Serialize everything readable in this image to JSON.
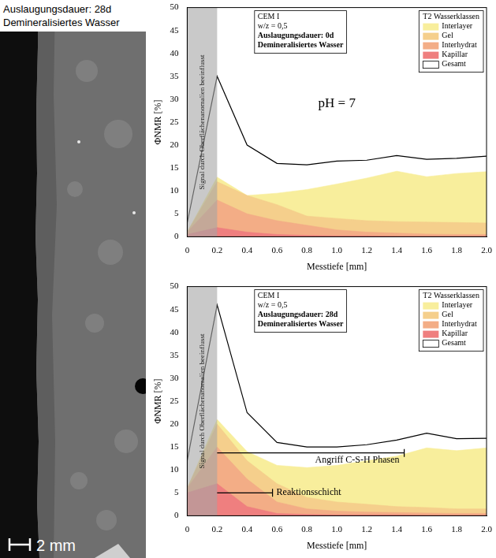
{
  "image_panel": {
    "title": [
      "Auslaugungsdauer: 28d",
      "Demineralisiertes Wasser"
    ],
    "scale_bar": "2 mm"
  },
  "chart_data": [
    {
      "type": "line",
      "info_box": [
        "CEM I",
        "w/z = 0,5",
        "Auslaugungsdauer: 0d",
        "Demineralisiertes Wasser"
      ],
      "legend": "upper right",
      "legend_title": "T2 Wasserklassen",
      "x_label": "Messtiefe [mm]",
      "y_label": "ΦNMR [%]",
      "x": [
        0,
        0.2,
        0.4,
        0.6,
        0.8,
        1.0,
        1.2,
        1.4,
        1.6,
        1.8,
        2.0
      ],
      "xlim": [
        0,
        2
      ],
      "xticks": [
        0,
        0.2,
        0.4,
        0.6,
        0.8,
        {
          "value": 1,
          "label": "1.0"
        },
        1.2,
        1.4,
        1.6,
        1.8,
        {
          "value": 2,
          "label": "2.0"
        }
      ],
      "ylim": [
        0,
        50
      ],
      "yticks": [
        0,
        5,
        10,
        15,
        20,
        25,
        30,
        35,
        40,
        45,
        50
      ],
      "grid": false,
      "series": [
        {
          "name": "Interlayer",
          "type": "area",
          "color": "#f8ee9c",
          "values": [
            1,
            13,
            9,
            9.5,
            10.3,
            11.5,
            12.8,
            14.3,
            13.1,
            13.8,
            14.2
          ]
        },
        {
          "name": "Gel",
          "type": "area",
          "color": "#f5cf8c",
          "values": [
            1,
            12,
            9,
            7,
            4.5,
            4,
            3.5,
            3.3,
            3.2,
            3.1,
            3
          ]
        },
        {
          "name": "Interhydrat",
          "type": "area",
          "color": "#f3ad86",
          "values": [
            1,
            8,
            5,
            3.5,
            2.5,
            1.5,
            1,
            0.8,
            0.6,
            0.5,
            0.5
          ]
        },
        {
          "name": "Kapillar",
          "type": "area",
          "color": "#ef7f7f",
          "values": [
            0.5,
            2,
            1,
            0.5,
            0.3,
            0.2,
            0.2,
            0.1,
            0.1,
            0.1,
            0.1
          ]
        },
        {
          "name": "Gesamt",
          "type": "line",
          "color": "#000000",
          "values": [
            3,
            35,
            20,
            16,
            15.7,
            16.5,
            16.7,
            17.7,
            16.9,
            17.1,
            17.6
          ]
        }
      ],
      "shaded_region": {
        "x": [
          0,
          0.2
        ],
        "label": "Signal durch Oberflächenanomalien beeinflusst"
      },
      "annotations": [
        {
          "text": "pH = 7",
          "x": 1.0,
          "y": 29
        }
      ],
      "brackets": []
    },
    {
      "type": "line",
      "info_box": [
        "CEM I",
        "w/z = 0,5",
        "Auslaugungsdauer: 28d",
        "Demineralisiertes Wasser"
      ],
      "legend": "upper right",
      "legend_title": "T2 Wasserklassen",
      "x_label": "Messtiefe [mm]",
      "y_label": "ΦNMR [%]",
      "x": [
        0,
        0.2,
        0.4,
        0.6,
        0.8,
        1.0,
        1.2,
        1.4,
        1.6,
        1.8,
        2.0
      ],
      "xlim": [
        0,
        2
      ],
      "xticks": [
        0,
        0.2,
        0.4,
        0.6,
        0.8,
        {
          "value": 1,
          "label": "1.0"
        },
        1.2,
        1.4,
        1.6,
        1.8,
        {
          "value": 2,
          "label": "2.0"
        }
      ],
      "ylim": [
        0,
        50
      ],
      "yticks": [
        0,
        5,
        10,
        15,
        20,
        25,
        30,
        35,
        40,
        45,
        50
      ],
      "grid": false,
      "series": [
        {
          "name": "Interlayer",
          "type": "area",
          "color": "#f8ee9c",
          "values": [
            6,
            21,
            14,
            11,
            10.5,
            11,
            12,
            13,
            14.8,
            14.2,
            14.8
          ]
        },
        {
          "name": "Gel",
          "type": "area",
          "color": "#f5cf8c",
          "values": [
            6,
            20,
            12,
            7,
            4,
            3,
            2.5,
            2,
            1.8,
            1.5,
            1.5
          ]
        },
        {
          "name": "Interhydrat",
          "type": "area",
          "color": "#f3ad86",
          "values": [
            6,
            15,
            8,
            3,
            1.5,
            1,
            0.8,
            0.7,
            0.6,
            0.5,
            0.5
          ]
        },
        {
          "name": "Kapillar",
          "type": "area",
          "color": "#ef7f7f",
          "values": [
            5,
            7,
            2,
            0.5,
            0.3,
            0.2,
            0.2,
            0.2,
            0.1,
            0.1,
            0.1
          ]
        },
        {
          "name": "Gesamt",
          "type": "line",
          "color": "#000000",
          "values": [
            12,
            46,
            22.5,
            16,
            15,
            15,
            15.5,
            16.5,
            18,
            16.8,
            16.9
          ]
        }
      ],
      "shaded_region": {
        "x": [
          0,
          0.2
        ],
        "label": "Signal durch Oberflächenanomalien beeinflusst"
      },
      "annotations": [],
      "brackets": [
        {
          "text": "Angriff C-S-H Phasen",
          "x": [
            0.2,
            1.45
          ],
          "y": 13.7
        },
        {
          "text": "Reaktionsschicht",
          "x": [
            0.2,
            0.57
          ],
          "y": 5
        }
      ]
    }
  ]
}
